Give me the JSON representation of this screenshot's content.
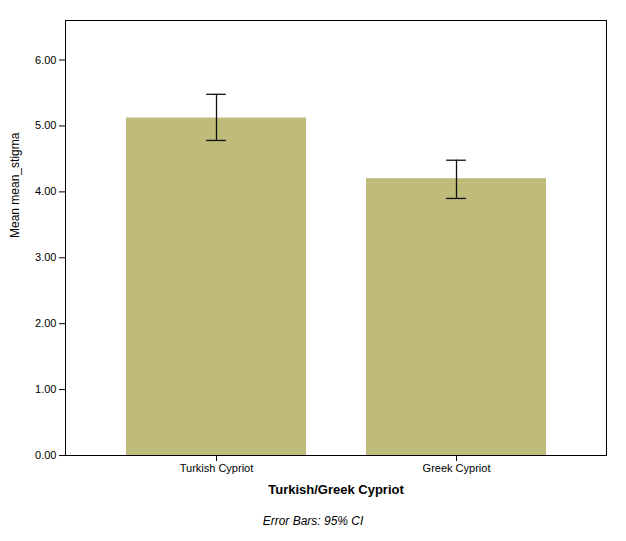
{
  "chart_data": {
    "type": "bar",
    "categories": [
      "Turkish Cypriot",
      "Greek Cypriot"
    ],
    "values": [
      5.12,
      4.2
    ],
    "error_lower": [
      0.34,
      0.3
    ],
    "error_upper": [
      0.36,
      0.28
    ],
    "color": "#bfbc7a",
    "xlabel": "Turkish/Greek Cypriot",
    "ylabel": "Mean mean_stigma",
    "caption": "Error Bars: 95% CI",
    "ylim": [
      0,
      6.6
    ],
    "yticks": [
      {
        "value": 0,
        "label": "0.00"
      },
      {
        "value": 1,
        "label": "1.00"
      },
      {
        "value": 2,
        "label": "2.00"
      },
      {
        "value": 3,
        "label": "3.00"
      },
      {
        "value": 4,
        "label": "4.00"
      },
      {
        "value": 5,
        "label": "5.00"
      },
      {
        "value": 6,
        "label": "6.00"
      }
    ],
    "grid": false
  }
}
